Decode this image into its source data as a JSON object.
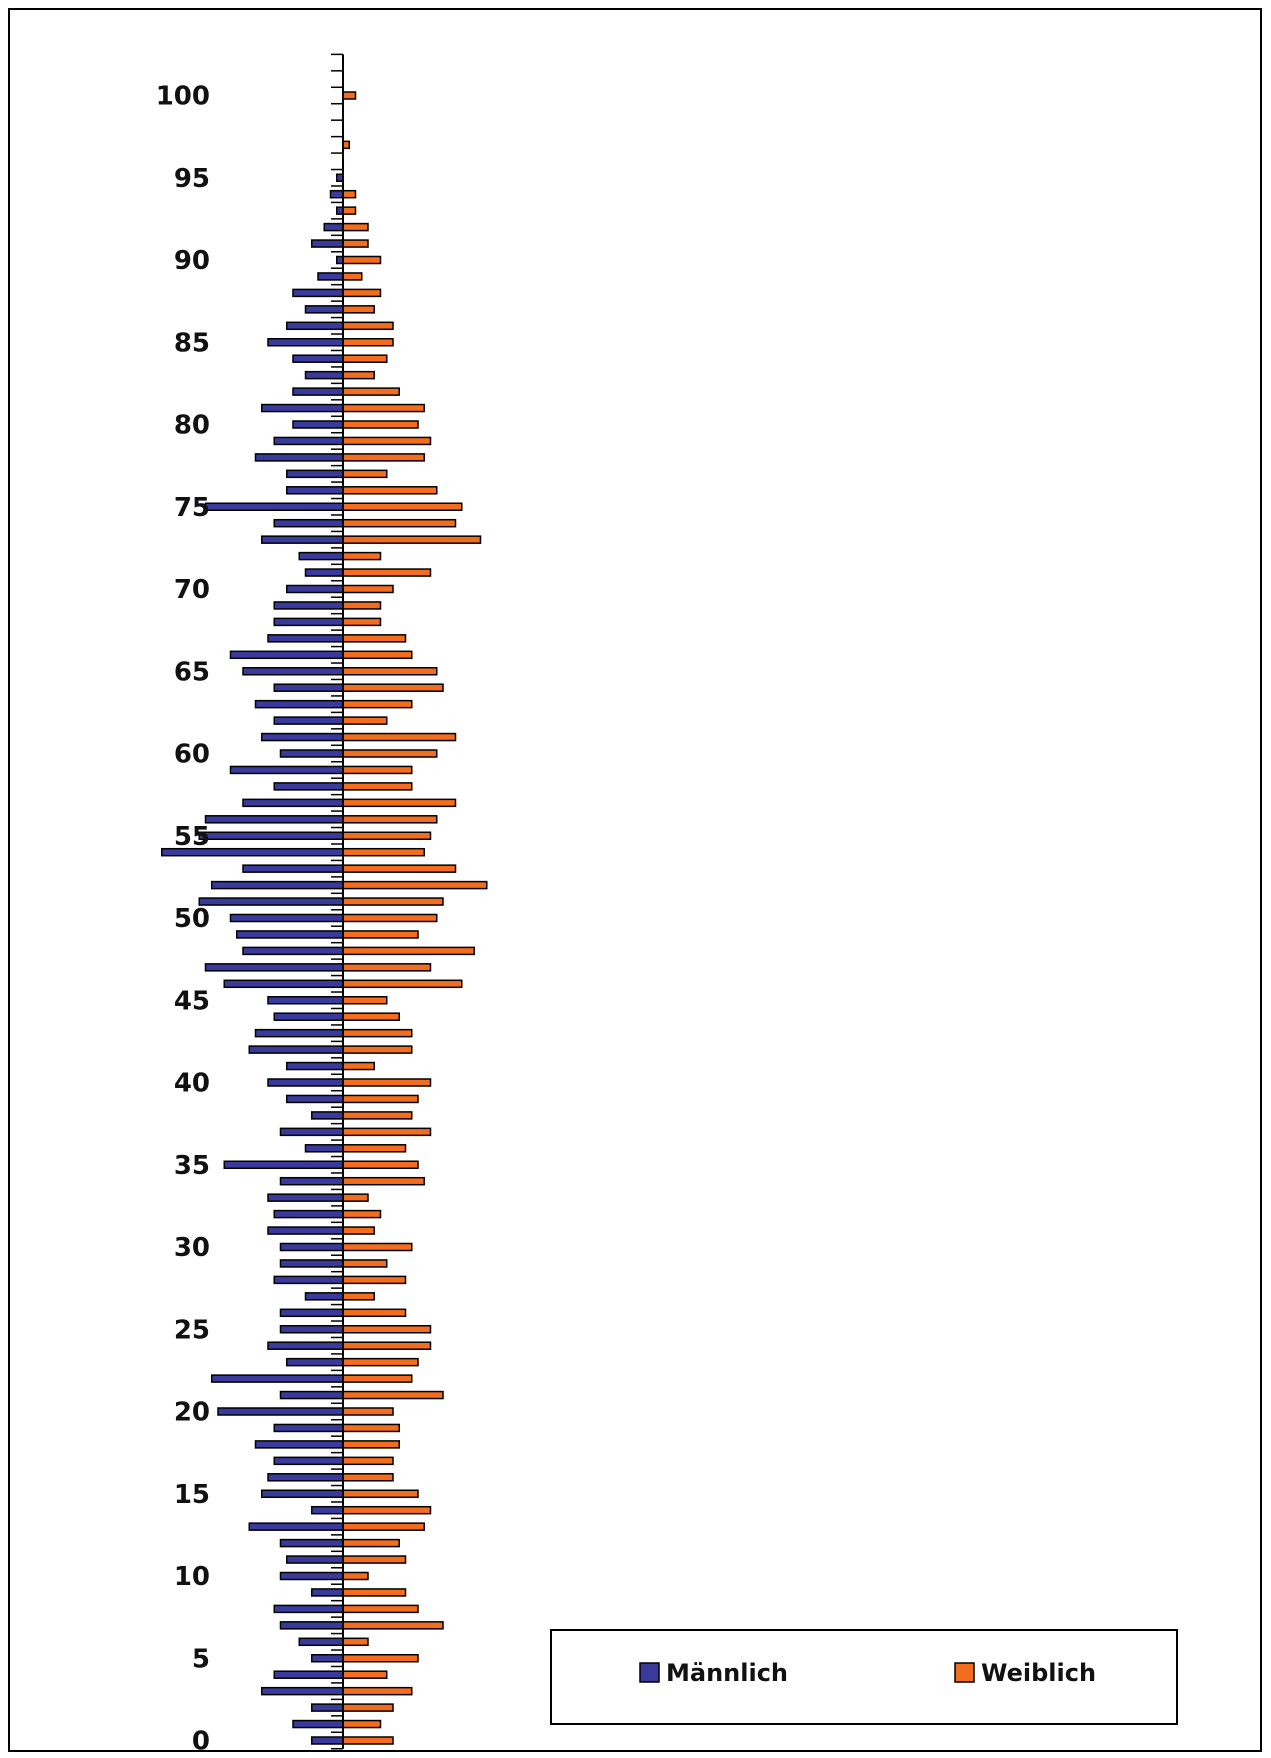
{
  "chart_data": {
    "type": "bar",
    "orientation": "horizontal-population-pyramid",
    "title": "",
    "xlabel": "",
    "ylabel": "",
    "ylim": [
      0,
      102
    ],
    "y_tick_labels": [
      "0",
      "5",
      "10",
      "15",
      "20",
      "25",
      "30",
      "35",
      "40",
      "45",
      "50",
      "55",
      "60",
      "65",
      "70",
      "75",
      "80",
      "85",
      "90",
      "95",
      "100"
    ],
    "legend_position": "bottom-right",
    "colors": {
      "male": "#3a3a9c",
      "female": "#f26d1e"
    },
    "series": [
      {
        "name": "Männlich",
        "values": [
          5,
          8,
          5,
          13,
          11,
          5,
          7,
          10,
          11,
          5,
          10,
          9,
          10,
          15,
          5,
          13,
          12,
          11,
          14,
          11,
          20,
          10,
          21,
          9,
          12,
          10,
          10,
          6,
          11,
          10,
          10,
          12,
          11,
          12,
          10,
          19,
          6,
          10,
          5,
          9,
          12,
          9,
          15,
          14,
          11,
          12,
          19,
          22,
          16,
          17,
          18,
          23,
          21,
          16,
          29,
          23,
          22,
          16,
          11,
          18,
          10,
          13,
          11,
          14,
          11,
          16,
          18,
          12,
          11,
          11,
          9,
          6,
          7,
          13,
          11,
          22,
          9,
          9,
          14,
          11,
          8,
          13,
          8,
          6,
          8,
          12,
          9,
          6,
          8,
          4,
          1,
          5,
          3,
          1,
          2,
          1,
          0,
          0,
          0,
          0,
          0
        ]
      },
      {
        "name": "Weiblich",
        "values": [
          8,
          6,
          8,
          11,
          7,
          12,
          4,
          16,
          12,
          10,
          4,
          10,
          9,
          13,
          14,
          12,
          8,
          8,
          9,
          9,
          8,
          16,
          11,
          12,
          14,
          14,
          10,
          5,
          10,
          7,
          11,
          5,
          6,
          4,
          13,
          12,
          10,
          14,
          11,
          12,
          14,
          5,
          11,
          11,
          9,
          7,
          19,
          14,
          21,
          12,
          15,
          16,
          23,
          18,
          13,
          14,
          15,
          18,
          11,
          11,
          15,
          18,
          7,
          11,
          16,
          15,
          11,
          10,
          6,
          6,
          8,
          14,
          6,
          22,
          18,
          19,
          15,
          7,
          13,
          14,
          12,
          13,
          9,
          5,
          7,
          8,
          8,
          5,
          6,
          3,
          6,
          4,
          4,
          2,
          2,
          0,
          0,
          1,
          0,
          0,
          2
        ]
      }
    ]
  },
  "legend": {
    "male_label": "Männlich",
    "female_label": "Weiblich"
  }
}
